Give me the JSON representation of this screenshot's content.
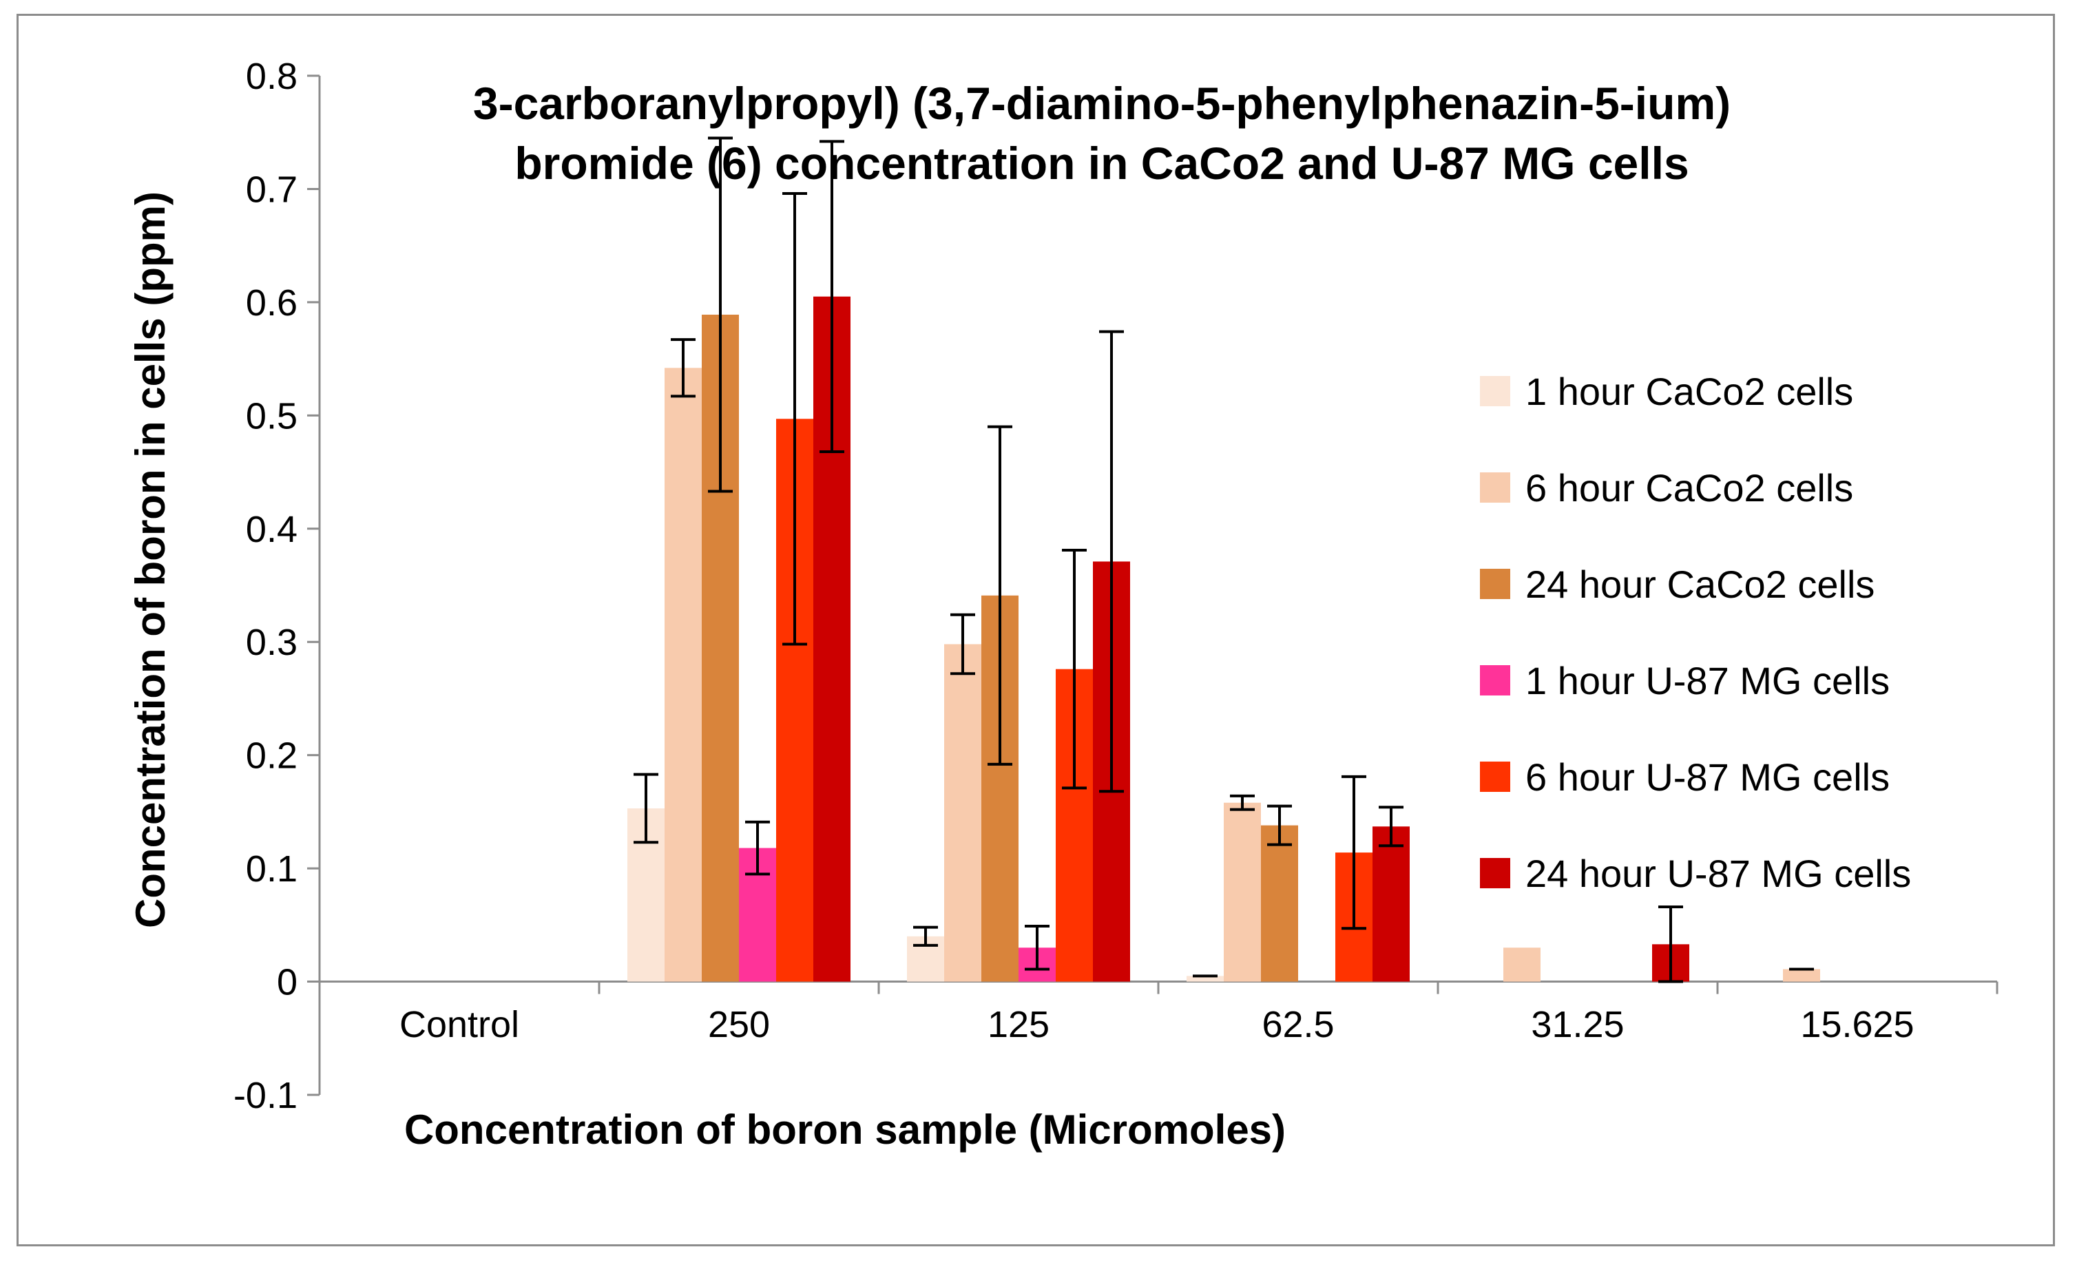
{
  "chart_data": {
    "type": "bar",
    "title": "3-carboranylpropyl) (3,7-diamino-5-phenylphenazin-5-ium) bromide (6) concentration in CaCo2 and U-87 MG cells",
    "title_lines": [
      "3-carboranylpropyl) (3,7-diamino-5-phenylphenazin-5-ium)",
      "bromide (6) concentration in CaCo2 and U-87 MG cells"
    ],
    "xlabel": "Concentration of boron sample (Micromoles)",
    "ylabel": "Concentration of boron in cells (ppm)",
    "ylim": [
      -0.1,
      0.8
    ],
    "yticks": [
      "-0.1",
      "0",
      "0.1",
      "0.2",
      "0.3",
      "0.4",
      "0.5",
      "0.6",
      "0.7",
      "0.8"
    ],
    "categories": [
      "Control",
      "250",
      "125",
      "62.5",
      "31.25",
      "15.625"
    ],
    "legend_position": "right",
    "series": [
      {
        "name": "1 hour CaCo2 cells",
        "color": "#FBE5D6",
        "values": [
          0,
          0.153,
          0.04,
          0.005,
          0,
          0
        ],
        "errors": [
          0,
          0.03,
          0.008,
          0,
          0,
          0
        ]
      },
      {
        "name": "6 hour CaCo2 cells",
        "color": "#F8CBAD",
        "values": [
          0,
          0.542,
          0.298,
          0.158,
          0.03,
          0.011
        ],
        "errors": [
          0,
          0.025,
          0.026,
          0.006,
          0,
          0
        ]
      },
      {
        "name": "24 hour CaCo2 cells",
        "color": "#D9843B",
        "values": [
          0,
          0.589,
          0.341,
          0.138,
          0,
          0
        ],
        "errors": [
          0,
          0.156,
          0.149,
          0.017,
          0,
          0
        ]
      },
      {
        "name": "1 hour U-87 MG cells",
        "color": "#FF3399",
        "values": [
          0,
          0.118,
          0.03,
          0,
          0,
          0
        ],
        "errors": [
          0,
          0.023,
          0.019,
          0,
          0,
          0
        ]
      },
      {
        "name": "6 hour U-87 MG cells",
        "color": "#FF3300",
        "values": [
          0,
          0.497,
          0.276,
          0.114,
          0,
          0
        ],
        "errors": [
          0,
          0.199,
          0.105,
          0.067,
          0,
          0
        ]
      },
      {
        "name": "24 hour U-87 MG cells",
        "color": "#CC0000",
        "values": [
          0,
          0.605,
          0.371,
          0.137,
          0.033,
          0
        ],
        "errors": [
          0,
          0.137,
          0.203,
          0.017,
          0.033,
          0
        ]
      }
    ]
  }
}
